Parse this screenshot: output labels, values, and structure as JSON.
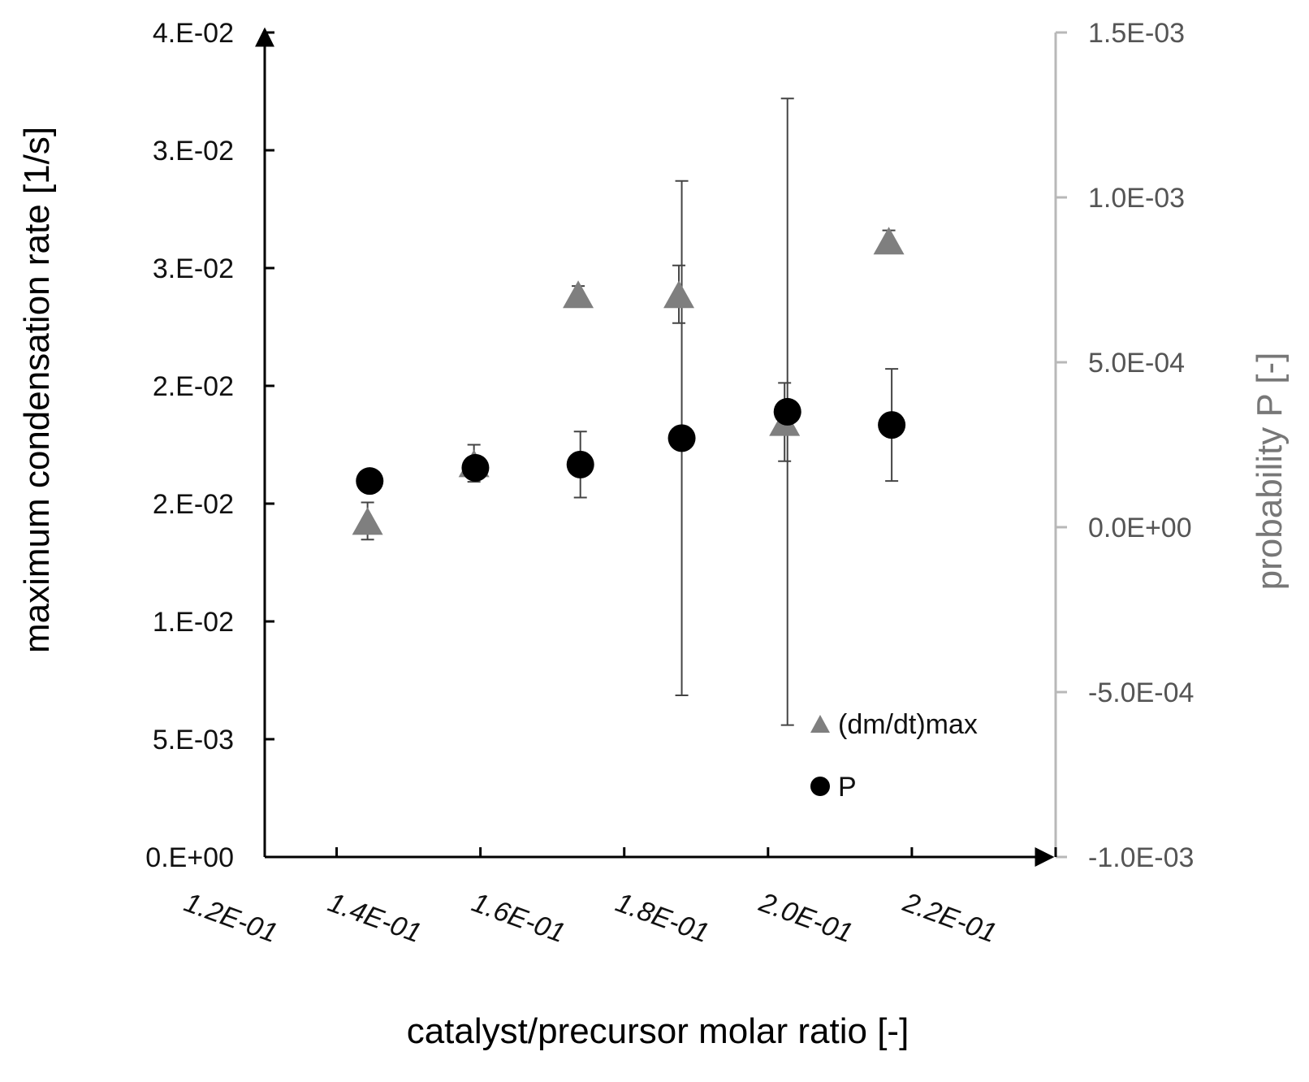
{
  "chart_data": {
    "type": "scatter",
    "xlabel": "catalyst/precursor molar ratio [-]",
    "ylabel": "maximum condensation rate [1/s]",
    "y2label": "probability P [-]",
    "xlim": [
      0.11,
      0.22
    ],
    "ylim": [
      0.0,
      0.04
    ],
    "y2lim": [
      -0.001,
      0.0015
    ],
    "x_ticks": [
      "1.2E-01",
      "1.4E-01",
      "1.6E-01",
      "1.8E-01",
      "2.0E-01",
      "2.2E-01"
    ],
    "y_ticks": [
      "0.E+00",
      "5.E-03",
      "1.E-02",
      "2.E-02",
      "2.E-02",
      "3.E-02",
      "3.E-02",
      "4.E-02"
    ],
    "y2_ticks": [
      "-1.0E-03",
      "-5.0E-04",
      "0.0E+00",
      "5.0E-04",
      "1.0E-03",
      "1.5E-03"
    ],
    "series": [
      {
        "name": "(dm/dt)max",
        "axis": "left",
        "marker": "triangle",
        "color": "#7f7f7f",
        "x": [
          0.1243,
          0.1391,
          0.1536,
          0.1676,
          0.1823,
          0.1968
        ],
        "y": [
          0.0163,
          0.0191,
          0.0273,
          0.0273,
          0.0211,
          0.0299
        ],
        "err": [
          0.0009,
          0.0009,
          0.0004,
          0.0014,
          0.0019,
          0.0005
        ]
      },
      {
        "name": "P",
        "axis": "right",
        "marker": "circle",
        "color": "#000000",
        "x": [
          0.1246,
          0.1393,
          0.1539,
          0.168,
          0.1827,
          0.1972
        ],
        "y": [
          0.00014,
          0.00018,
          0.00019,
          0.00027,
          0.00035,
          0.00031
        ],
        "err": [
          0.0,
          0.0,
          0.0001,
          0.00078,
          0.00095,
          0.00017
        ]
      }
    ],
    "legend_position": "bottom-right",
    "grid": false
  }
}
